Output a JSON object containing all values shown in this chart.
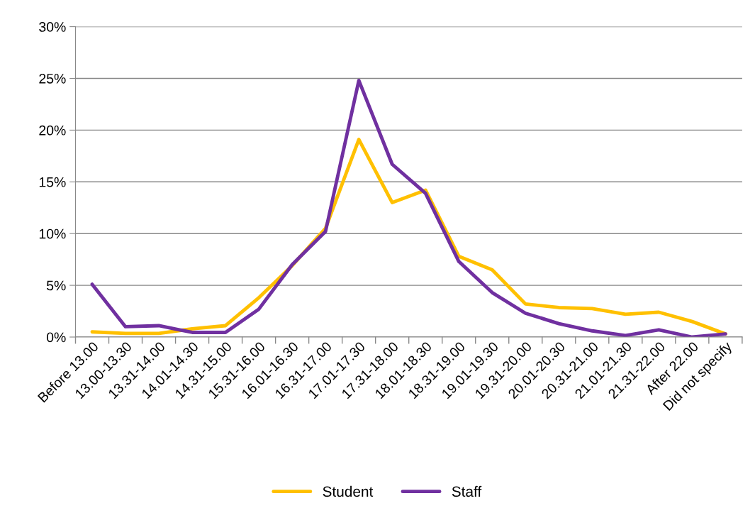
{
  "chart_data": {
    "type": "line",
    "categories": [
      "Before 13.00",
      "13.00-13.30",
      "13.31-14.00",
      "14.01-14.30",
      "14.31-15.00",
      "15.31-16.00",
      "16.01-16.30",
      "16.31-17.00",
      "17.01-17.30",
      "17.31-18.00",
      "18.01-18.30",
      "18.31-19.00",
      "19.01-19.30",
      "19.31-20.00",
      "20.01-20.30",
      "20.31-21.00",
      "21.01-21.30",
      "21.31-22.00",
      "After 22.00",
      "Did not specify"
    ],
    "series": [
      {
        "name": "Student",
        "color": "#ffc000",
        "values": [
          0.5,
          0.35,
          0.35,
          0.8,
          1.1,
          3.8,
          6.9,
          10.5,
          19.1,
          13.0,
          14.2,
          7.8,
          6.5,
          3.2,
          2.85,
          2.75,
          2.2,
          2.4,
          1.5,
          0.3
        ]
      },
      {
        "name": "Staff",
        "color": "#7030a0",
        "values": [
          5.1,
          1.0,
          1.1,
          0.45,
          0.45,
          2.7,
          7.0,
          10.2,
          24.8,
          16.7,
          13.9,
          7.3,
          4.3,
          2.3,
          1.3,
          0.6,
          0.15,
          0.7,
          0.0,
          0.3
        ]
      }
    ],
    "ylim": [
      0,
      30
    ],
    "yticks": [
      {
        "value": 0,
        "label": "0%"
      },
      {
        "value": 5,
        "label": "5%"
      },
      {
        "value": 10,
        "label": "10%"
      },
      {
        "value": 15,
        "label": "15%"
      },
      {
        "value": 20,
        "label": "20%"
      },
      {
        "value": 25,
        "label": "25%"
      },
      {
        "value": 30,
        "label": "30%"
      }
    ],
    "grid": "y",
    "legend": "bottom",
    "marker": "none",
    "line_style": "solid"
  }
}
